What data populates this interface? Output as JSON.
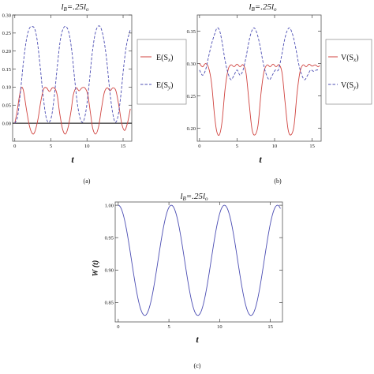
{
  "chart_data": [
    {
      "id": "a",
      "type": "line",
      "title": "l_B=.25l_o",
      "xlabel": "t",
      "ylabel": "",
      "caption": "(a)",
      "xlim": [
        -0.3,
        16.2
      ],
      "ylim": [
        -0.05,
        0.3
      ],
      "xticks": [
        0,
        5,
        10,
        15
      ],
      "yticks": [
        0.0,
        0.05,
        0.1,
        0.15,
        0.2,
        0.25,
        0.3
      ],
      "ytick_labels": [
        "0.00",
        "0.05",
        "0.10",
        "0.15",
        "0.20",
        "0.25",
        "0.30"
      ],
      "zero_line": true,
      "legend": "right",
      "series": [
        {
          "name": "E(S_x)",
          "color": "#d0433f",
          "style": "solid",
          "x": [
            0,
            0.3,
            0.6,
            0.9,
            1.2,
            1.6,
            2.0,
            2.4,
            2.75,
            3.2,
            3.6,
            4.0,
            4.4,
            4.8,
            5.2,
            5.6,
            5.9,
            6.2,
            6.6,
            7.0,
            7.4,
            7.8,
            8.1,
            8.5,
            8.9,
            9.3,
            9.7,
            10.1,
            10.5,
            10.8,
            11.2,
            11.6,
            12.0,
            12.4,
            12.8,
            13.2,
            13.6,
            14.0,
            14.4,
            14.8,
            15.2,
            15.6,
            16.0
          ],
          "y": [
            0.0,
            0.03,
            0.07,
            0.098,
            0.09,
            0.04,
            -0.005,
            -0.028,
            -0.025,
            0.01,
            0.06,
            0.095,
            0.098,
            0.088,
            0.098,
            0.095,
            0.075,
            0.03,
            -0.015,
            -0.03,
            -0.01,
            0.035,
            0.078,
            0.098,
            0.09,
            0.098,
            0.098,
            0.08,
            0.025,
            -0.015,
            -0.03,
            -0.01,
            0.04,
            0.085,
            0.098,
            0.09,
            0.098,
            0.09,
            0.05,
            0.0,
            -0.02,
            0.0,
            0.04
          ]
        },
        {
          "name": "E(S_y)",
          "color": "#4b4db3",
          "style": "dashed",
          "x": [
            0,
            0.4,
            0.8,
            1.2,
            1.6,
            2.0,
            2.4,
            2.75,
            3.1,
            3.5,
            3.9,
            4.3,
            4.7,
            5.1,
            5.5,
            5.9,
            6.3,
            6.7,
            7.1,
            7.5,
            7.9,
            8.3,
            8.7,
            9.1,
            9.5,
            9.9,
            10.3,
            10.7,
            11.1,
            11.5,
            11.9,
            12.3,
            12.7,
            13.1,
            13.5,
            13.9,
            14.3,
            14.7,
            15.1,
            15.5,
            16.0
          ],
          "y": [
            0.0,
            0.02,
            0.09,
            0.17,
            0.23,
            0.262,
            0.268,
            0.262,
            0.23,
            0.16,
            0.08,
            0.02,
            0.002,
            0.02,
            0.08,
            0.16,
            0.23,
            0.262,
            0.268,
            0.25,
            0.2,
            0.12,
            0.05,
            0.01,
            0.005,
            0.04,
            0.11,
            0.19,
            0.245,
            0.268,
            0.265,
            0.235,
            0.18,
            0.1,
            0.035,
            0.003,
            0.02,
            0.08,
            0.16,
            0.22,
            0.26
          ]
        }
      ]
    },
    {
      "id": "b",
      "type": "line",
      "title": "l_B=.25l_o",
      "xlabel": "t",
      "ylabel": "",
      "caption": "(b)",
      "xlim": [
        -0.3,
        16.2
      ],
      "ylim": [
        0.18,
        0.375
      ],
      "xticks": [
        0,
        5,
        10,
        15
      ],
      "yticks": [
        0.2,
        0.25,
        0.3,
        0.35
      ],
      "ytick_labels": [
        "0.20",
        "0.25",
        "0.30",
        "0.35"
      ],
      "zero_line": false,
      "legend": "right",
      "series": [
        {
          "name": "V(S_x)",
          "color": "#d0433f",
          "style": "solid",
          "x": [
            0,
            0.4,
            0.8,
            1.2,
            1.6,
            2.0,
            2.3,
            2.65,
            3.0,
            3.4,
            3.8,
            4.2,
            4.6,
            5.0,
            5.4,
            5.8,
            6.2,
            6.6,
            7.0,
            7.4,
            7.8,
            8.2,
            8.6,
            9.0,
            9.4,
            9.8,
            10.2,
            10.6,
            11.0,
            11.4,
            11.8,
            12.2,
            12.6,
            13.0,
            13.4,
            13.8,
            14.2,
            14.6,
            15.0,
            15.4,
            15.8,
            16.0
          ],
          "y": [
            0.3,
            0.295,
            0.3,
            0.294,
            0.27,
            0.22,
            0.195,
            0.19,
            0.21,
            0.26,
            0.29,
            0.298,
            0.295,
            0.299,
            0.295,
            0.298,
            0.285,
            0.24,
            0.198,
            0.19,
            0.205,
            0.255,
            0.288,
            0.298,
            0.295,
            0.299,
            0.295,
            0.298,
            0.285,
            0.24,
            0.198,
            0.19,
            0.205,
            0.255,
            0.288,
            0.298,
            0.295,
            0.299,
            0.296,
            0.298,
            0.295,
            0.297
          ]
        },
        {
          "name": "V(S_y)",
          "color": "#4b4db3",
          "style": "dashed",
          "x": [
            0,
            0.4,
            0.8,
            1.2,
            1.6,
            2.0,
            2.35,
            2.7,
            3.05,
            3.4,
            3.8,
            4.2,
            4.6,
            5.0,
            5.4,
            5.8,
            6.2,
            6.6,
            6.95,
            7.3,
            7.7,
            8.1,
            8.5,
            8.9,
            9.3,
            9.7,
            10.1,
            10.5,
            10.9,
            11.3,
            11.65,
            12.0,
            12.4,
            12.8,
            13.2,
            13.6,
            14.0,
            14.4,
            14.8,
            15.2,
            15.6,
            16.0
          ],
          "y": [
            0.29,
            0.282,
            0.29,
            0.31,
            0.33,
            0.345,
            0.355,
            0.35,
            0.33,
            0.305,
            0.285,
            0.275,
            0.282,
            0.29,
            0.282,
            0.29,
            0.31,
            0.335,
            0.35,
            0.355,
            0.345,
            0.325,
            0.3,
            0.283,
            0.275,
            0.282,
            0.29,
            0.29,
            0.31,
            0.335,
            0.35,
            0.355,
            0.345,
            0.325,
            0.3,
            0.283,
            0.275,
            0.282,
            0.29,
            0.288,
            0.29,
            0.29
          ]
        }
      ]
    },
    {
      "id": "c",
      "type": "line",
      "title": "l_B=.25l_o",
      "xlabel": "t",
      "ylabel": "W (t)",
      "caption": "(c)",
      "xlim": [
        -0.3,
        16.2
      ],
      "ylim": [
        0.82,
        1.005
      ],
      "xticks": [
        0,
        5,
        10,
        15
      ],
      "yticks": [
        0.85,
        0.9,
        0.95,
        1.0
      ],
      "ytick_labels": [
        "0.85",
        "0.90",
        "0.95",
        "1.00"
      ],
      "zero_line": false,
      "legend": "none",
      "series": [
        {
          "name": "",
          "color": "#4b4db3",
          "style": "solid",
          "period": 5.236,
          "min": 0.83,
          "max": 1.0
        }
      ]
    }
  ]
}
